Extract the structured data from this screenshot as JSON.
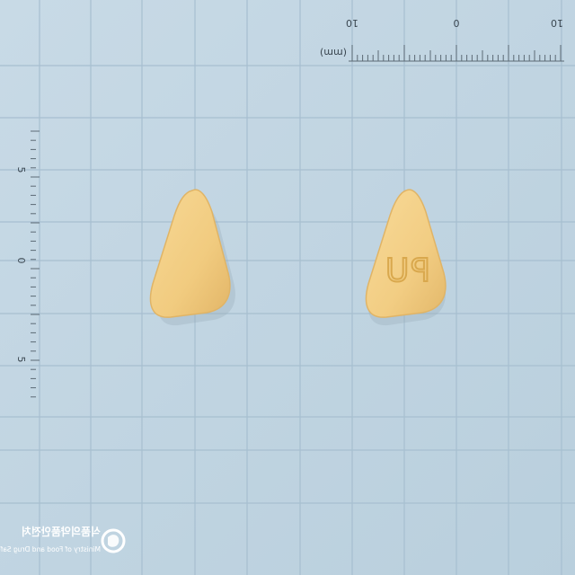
{
  "top_ruler": {
    "unit_label": "(mm)",
    "labels": [
      "10",
      "0",
      "10"
    ]
  },
  "left_ruler": {
    "labels": [
      "5",
      "0",
      "5"
    ]
  },
  "pills": {
    "color": "#f3cf86",
    "shadow_color": "#d9ac5f",
    "imprint_color": "#d8a84e",
    "back_imprint": "PU"
  },
  "logo": {
    "korean": "식품의약품안전처",
    "english": "Ministry of Food and Drug Safety"
  },
  "colors": {
    "background": "#c3d6e3",
    "grid_line": "#a9c0d0"
  }
}
